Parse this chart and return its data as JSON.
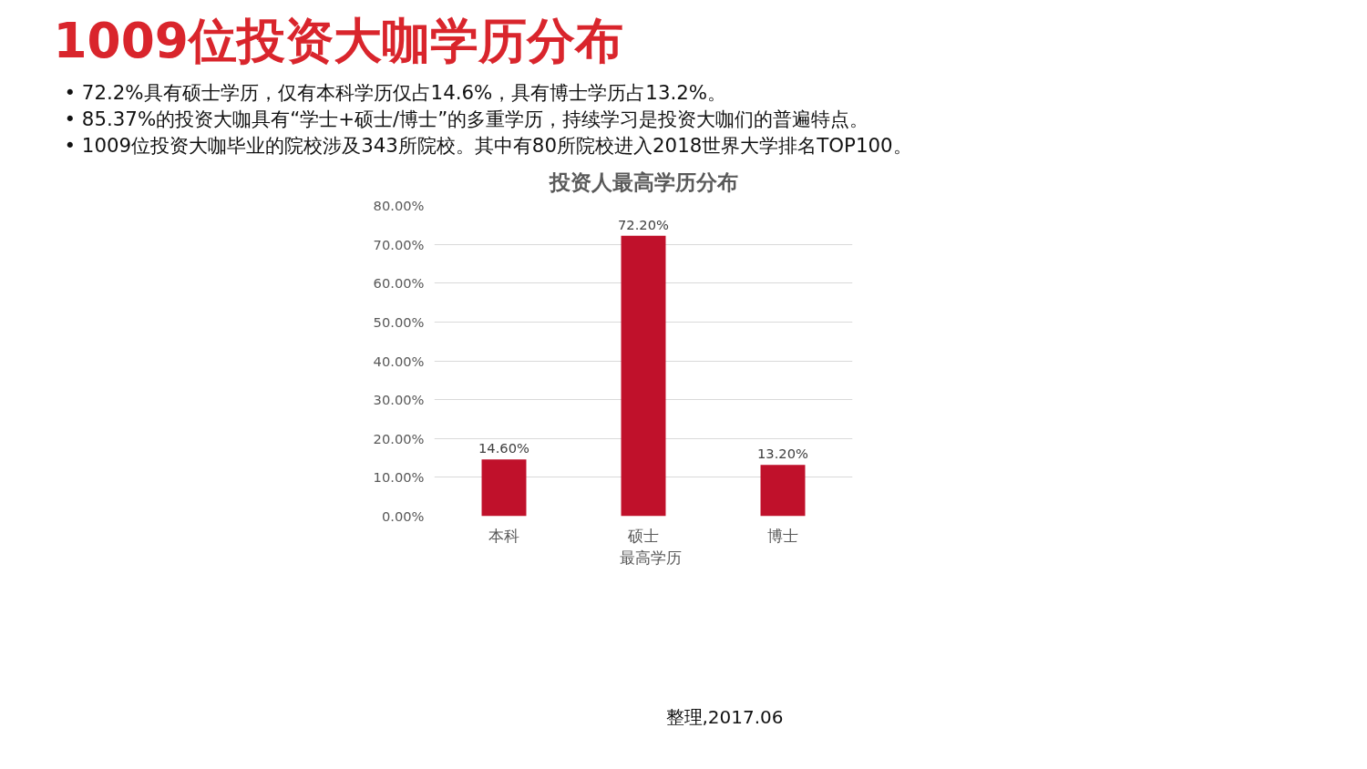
{
  "chart_data": {
    "type": "bar",
    "title": "1009位投资大咖学历分布",
    "subtitle": "投资人最高学历分布",
    "annotations": [
      "•   72.2%具有硕士学历，仅有本科学历仅占14.6%，具有博士学历占13.2%。",
      "•   85.37%的投资大咖具有“学士+硕士/博士”的多重学历，持续学习是投资大咖们的普遍特点。",
      "•   1009位投资大咖毕业的院校涉及343所院校。其中有80所院校进入2018世界大学排名TOP100。",
      "整理,2017.06"
    ],
    "categories": [
      "本科",
      "硕士",
      "博士"
    ],
    "series": [
      {
        "name": "最高学历",
        "color": "#c0112b",
        "values": [
          14.6,
          72.2,
          13.2
        ]
      }
    ],
    "value_labels": [
      "14.60%",
      "72.20%",
      "13.20%"
    ],
    "ylim": [
      0,
      80
    ],
    "yticks": [
      {
        "value": 0,
        "label": "0.00%"
      },
      {
        "value": 10,
        "label": "10.00%"
      },
      {
        "value": 20,
        "label": "20.00%"
      },
      {
        "value": 30,
        "label": "30.00%"
      },
      {
        "value": 40,
        "label": "40.00%"
      },
      {
        "value": 50,
        "label": "50.00%"
      },
      {
        "value": 60,
        "label": "60.00%"
      },
      {
        "value": 70,
        "label": "70.00%"
      },
      {
        "value": 80,
        "label": "80.00%"
      }
    ],
    "grid": "y",
    "legend": "bottom"
  }
}
